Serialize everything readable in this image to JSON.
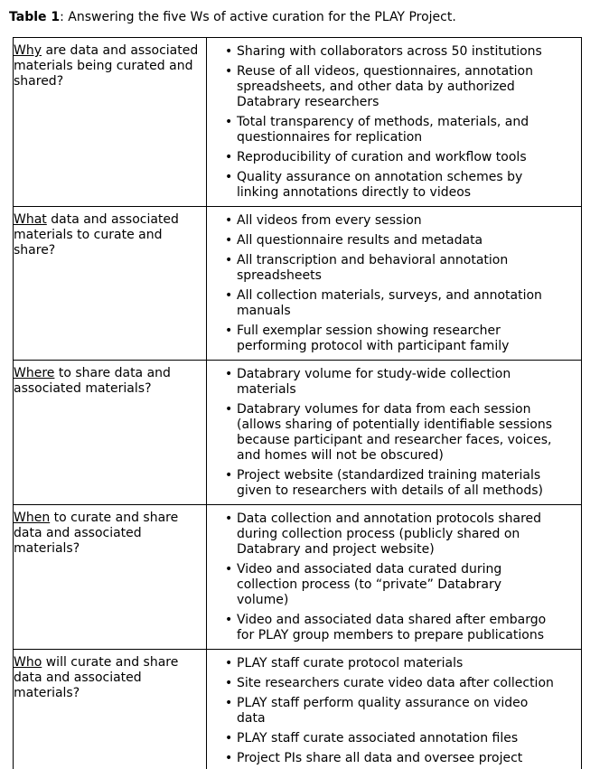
{
  "caption": {
    "label": "Table 1",
    "rest": ": Answering the five Ws of active curation for the PLAY Project."
  },
  "table": {
    "rows": [
      {
        "question_word": "Why",
        "question_rest": " are data and associated materials being curated and shared?",
        "bullets": [
          "Sharing with collaborators across 50 institutions",
          "Reuse of all videos, questionnaires, annotation spreadsheets, and other data by authorized Databrary researchers",
          "Total transparency of methods, materials, and questionnaires for replication",
          "Reproducibility of curation and workflow tools",
          "Quality assurance on annotation schemes by linking annotations directly to videos"
        ]
      },
      {
        "question_word": "What",
        "question_rest": " data and associated materials to curate and share?",
        "bullets": [
          "All videos from every session",
          "All questionnaire results and metadata",
          "All transcription and behavioral annotation spreadsheets",
          "All collection materials, surveys, and annotation manuals",
          "Full exemplar session showing researcher performing protocol with participant family"
        ]
      },
      {
        "question_word": "Where",
        "question_rest": " to share data and associated materials?",
        "bullets": [
          "Databrary volume for study-wide collection materials",
          "Databrary volumes for data from each session (allows sharing of potentially identifiable sessions because participant and researcher faces, voices, and homes will not be obscured)",
          "Project website (standardized training materials given to researchers with details of all methods)"
        ]
      },
      {
        "question_word": "When",
        "question_rest": " to curate and share data and associated materials?",
        "bullets": [
          "Data collection and annotation protocols shared during collection process (publicly shared on Databrary and project website)",
          "Video and associated data curated during collection process (to “private” Databrary volume)",
          "Video and associated data shared after embargo for PLAY group members to prepare publications"
        ]
      },
      {
        "question_word": "Who",
        "question_rest": " will curate and share data and associated materials?",
        "bullets": [
          "PLAY staff curate protocol materials",
          "Site researchers curate video data after collection",
          "PLAY staff perform quality assurance on video data",
          "PLAY staff curate associated annotation files",
          "Project PIs share all data and oversee project"
        ]
      }
    ]
  }
}
